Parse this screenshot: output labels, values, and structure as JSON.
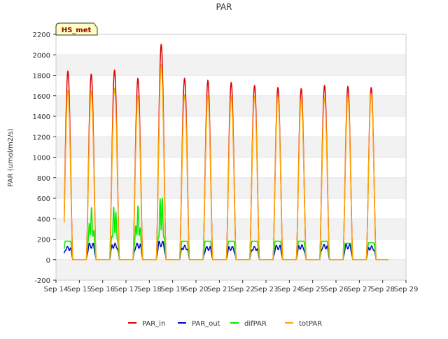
{
  "chart_data": {
    "type": "line",
    "title": "PAR",
    "ylabel": "PAR (umol/m2/s)",
    "xlabel": "",
    "site_label": "HS_met",
    "ylim": [
      -200,
      2200
    ],
    "yticks": [
      -200,
      0,
      200,
      400,
      600,
      800,
      1000,
      1200,
      1400,
      1600,
      1800,
      2000,
      2200
    ],
    "xlim": [
      14,
      29
    ],
    "xticks": [
      {
        "day": 14,
        "label": "Sep 14"
      },
      {
        "day": 15,
        "label": "Sep 15"
      },
      {
        "day": 16,
        "label": "Sep 16"
      },
      {
        "day": 17,
        "label": "Sep 17"
      },
      {
        "day": 18,
        "label": "Sep 18"
      },
      {
        "day": 19,
        "label": "Sep 19"
      },
      {
        "day": 20,
        "label": "Sep 20"
      },
      {
        "day": 21,
        "label": "Sep 21"
      },
      {
        "day": 22,
        "label": "Sep 22"
      },
      {
        "day": 23,
        "label": "Sep 23"
      },
      {
        "day": 24,
        "label": "Sep 24"
      },
      {
        "day": 25,
        "label": "Sep 25"
      },
      {
        "day": 26,
        "label": "Sep 26"
      },
      {
        "day": 27,
        "label": "Sep 27"
      },
      {
        "day": 28,
        "label": "Sep 28"
      },
      {
        "day": 29,
        "label": "Sep 29"
      }
    ],
    "data_start_day": 14.35,
    "data_end_day": 28.25,
    "days": [
      14,
      15,
      16,
      17,
      18,
      19,
      20,
      21,
      22,
      23,
      24,
      25,
      26,
      27
    ],
    "daily_peaks": {
      "PAR_in": [
        1840,
        1810,
        1850,
        1770,
        2100,
        1770,
        1750,
        1730,
        1700,
        1680,
        1670,
        1700,
        1690,
        1680
      ],
      "totPAR": [
        1650,
        1640,
        1670,
        1600,
        1900,
        1610,
        1600,
        1590,
        1590,
        1590,
        1570,
        1580,
        1590,
        1620
      ],
      "difPAR": [
        180,
        520,
        570,
        530,
        700,
        190,
        200,
        180,
        190,
        210,
        230,
        210,
        160,
        165
      ],
      "PAR_out": [
        130,
        160,
        160,
        160,
        180,
        140,
        130,
        130,
        130,
        140,
        145,
        150,
        150,
        135
      ]
    },
    "series": [
      {
        "name": "PAR_in",
        "color": "#dd0000"
      },
      {
        "name": "PAR_out",
        "color": "#0000cc"
      },
      {
        "name": "difPAR",
        "color": "#00ee00"
      },
      {
        "name": "totPAR",
        "color": "#ffa500"
      }
    ],
    "legend_position": "bottom-center",
    "grid": "horizontal bands"
  }
}
